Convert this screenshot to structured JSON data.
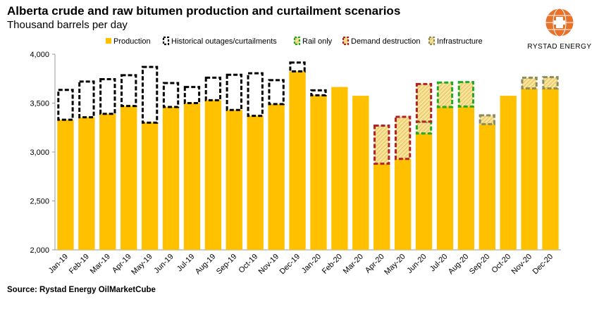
{
  "title": "Alberta crude and raw bitumen production and curtailment scenarios",
  "subtitle": "Thousand barrels per day",
  "source": "Source: Rystad Energy OilMarketCube",
  "logo": {
    "icon": "rystad-globe-icon",
    "text": "RYSTAD ENERGY"
  },
  "colors": {
    "production": "#FFC000",
    "historical": "#000000",
    "rail": "#22AA22",
    "demand": "#B22222",
    "infra": "#8C8C5A",
    "hatch_fill": "#F7E3A0"
  },
  "chart_data": {
    "type": "bar",
    "title": "Alberta crude and raw bitumen production and curtailment scenarios",
    "ylabel": "Thousand barrels per day",
    "xlabel": "",
    "ylim": [
      2000,
      4000
    ],
    "yticks": [
      2000,
      2500,
      3000,
      3500,
      4000
    ],
    "ytick_labels": [
      "2,000",
      "2,500",
      "3,000",
      "3,500",
      "4,000"
    ],
    "legend_position": "top",
    "legend": [
      {
        "key": "production",
        "label": "Production",
        "style": "solid"
      },
      {
        "key": "historical",
        "label": "Historical outages/curtailments",
        "style": "dashed-outline"
      },
      {
        "key": "rail",
        "label": "Rail only",
        "style": "dashed-hatched"
      },
      {
        "key": "demand",
        "label": "Demand destruction",
        "style": "dashed-hatched"
      },
      {
        "key": "infra",
        "label": "Infrastructure",
        "style": "dashed-hatched"
      }
    ],
    "categories": [
      "Jan-19",
      "Feb-19",
      "Mar-19",
      "Apr-19",
      "May-19",
      "Jun-19",
      "Jul-19",
      "Aug-19",
      "Sep-19",
      "Oct-19",
      "Nov-19",
      "Dec-19",
      "Jan-20",
      "Feb-20",
      "Mar-20",
      "Apr-20",
      "May-20",
      "Jun-20",
      "Jul-20",
      "Aug-20",
      "Sep-20",
      "Oct-20",
      "Nov-20",
      "Dec-20"
    ],
    "production": [
      3330,
      3355,
      3390,
      3470,
      3300,
      3460,
      3500,
      3530,
      3430,
      3370,
      3490,
      3825,
      3580,
      3665,
      3575,
      2880,
      2930,
      3190,
      3460,
      3465,
      3285,
      3575,
      3650,
      3650
    ],
    "segments": [
      {
        "index": 0,
        "type": "historical",
        "from": 3330,
        "to": 3635
      },
      {
        "index": 1,
        "type": "historical",
        "from": 3355,
        "to": 3720
      },
      {
        "index": 2,
        "type": "historical",
        "from": 3390,
        "to": 3745
      },
      {
        "index": 3,
        "type": "historical",
        "from": 3470,
        "to": 3785
      },
      {
        "index": 4,
        "type": "historical",
        "from": 3300,
        "to": 3870
      },
      {
        "index": 5,
        "type": "historical",
        "from": 3460,
        "to": 3705
      },
      {
        "index": 6,
        "type": "historical",
        "from": 3500,
        "to": 3665
      },
      {
        "index": 7,
        "type": "historical",
        "from": 3530,
        "to": 3760
      },
      {
        "index": 8,
        "type": "historical",
        "from": 3430,
        "to": 3790
      },
      {
        "index": 9,
        "type": "historical",
        "from": 3370,
        "to": 3805
      },
      {
        "index": 10,
        "type": "historical",
        "from": 3490,
        "to": 3735
      },
      {
        "index": 11,
        "type": "historical",
        "from": 3825,
        "to": 3915
      },
      {
        "index": 12,
        "type": "historical",
        "from": 3580,
        "to": 3630
      },
      {
        "index": 15,
        "type": "demand",
        "from": 2880,
        "to": 3270
      },
      {
        "index": 16,
        "type": "demand",
        "from": 2930,
        "to": 3360
      },
      {
        "index": 17,
        "type": "rail",
        "from": 3190,
        "to": 3310
      },
      {
        "index": 17,
        "type": "demand",
        "from": 3310,
        "to": 3695
      },
      {
        "index": 18,
        "type": "rail",
        "from": 3460,
        "to": 3710
      },
      {
        "index": 19,
        "type": "rail",
        "from": 3465,
        "to": 3715
      },
      {
        "index": 20,
        "type": "infra",
        "from": 3285,
        "to": 3375
      },
      {
        "index": 22,
        "type": "infra",
        "from": 3650,
        "to": 3760
      },
      {
        "index": 23,
        "type": "infra",
        "from": 3650,
        "to": 3765
      }
    ]
  }
}
